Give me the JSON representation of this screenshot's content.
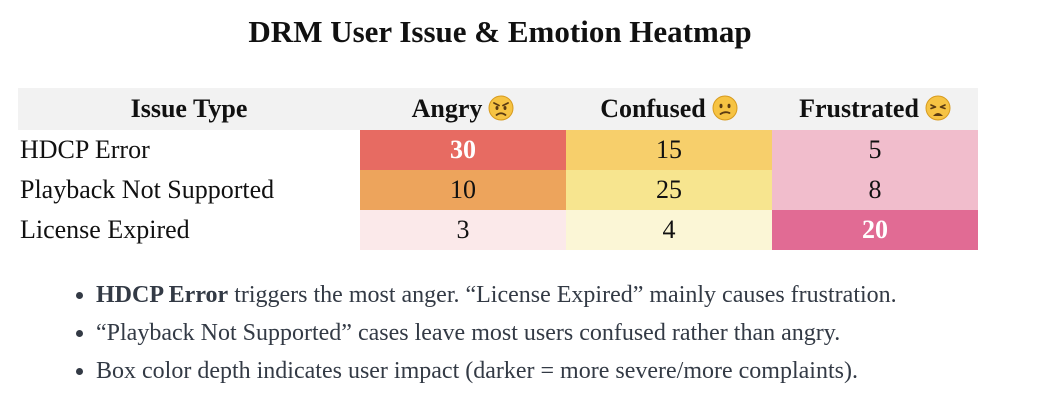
{
  "title": "DRM User Issue & Emotion Heatmap",
  "chart_data": {
    "type": "heatmap",
    "title": "DRM User Issue & Emotion Heatmap",
    "row_header": "Issue Type",
    "columns": [
      "Angry",
      "Confused",
      "Frustrated"
    ],
    "rows": [
      "HDCP Error",
      "Playback Not Supported",
      "License Expired"
    ],
    "values": [
      [
        30,
        15,
        5
      ],
      [
        10,
        25,
        8
      ],
      [
        3,
        4,
        20
      ]
    ],
    "highlight": [
      [
        true,
        false,
        false
      ],
      [
        false,
        false,
        false
      ],
      [
        false,
        false,
        true
      ]
    ],
    "colors": {
      "Angry": [
        "#fbe9ea",
        "#eda45c",
        "#e76b62"
      ],
      "Confused": [
        "#fbf6d6",
        "#f7e58f",
        "#f7cf6b"
      ],
      "Frustrated": [
        "#f1bdcc",
        "#e16b94"
      ],
      "header_bg": "#f2f2f2"
    },
    "cell_colors": [
      [
        "#e76b62",
        "#f7cf6b",
        "#f1bdcc"
      ],
      [
        "#eda45c",
        "#f7e58f",
        "#f1bdcc"
      ],
      [
        "#fbe9ea",
        "#fbf6d6",
        "#e16b94"
      ]
    ],
    "column_icons": [
      "angry-face-icon",
      "confused-face-icon",
      "weary-face-icon"
    ]
  },
  "notes": [
    {
      "strong": "HDCP Error",
      "text": " triggers the most anger. “License Expired” mainly causes frustration."
    },
    {
      "strong": "",
      "text": "“Playback Not Supported” cases leave most users confused rather than angry."
    },
    {
      "strong": "",
      "text": "Box color depth indicates user impact (darker = more severe/more complaints)."
    }
  ]
}
